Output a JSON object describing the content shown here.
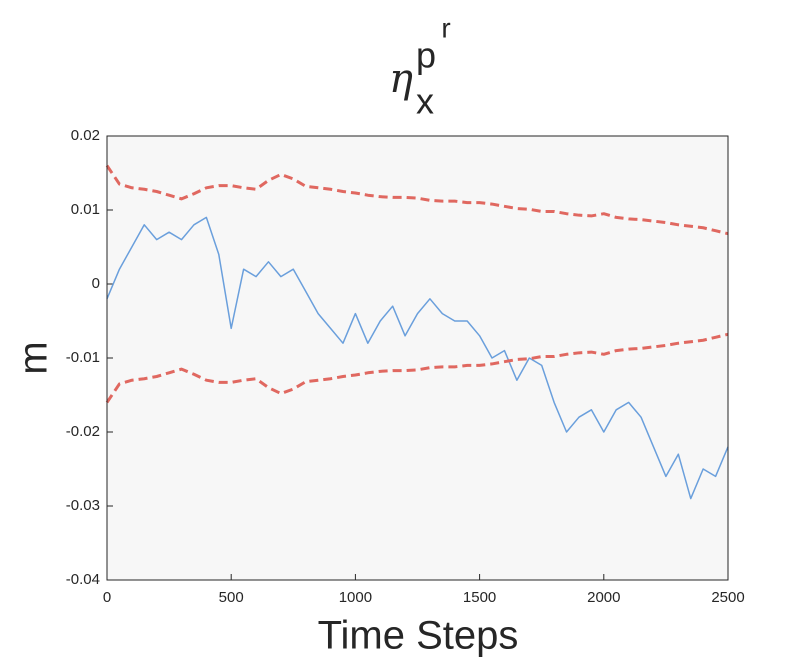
{
  "chart_data": {
    "type": "line",
    "title": {
      "base": "η",
      "subscript": "x",
      "superscript": "p",
      "superscript_superscript": "r"
    },
    "xlabel": "Time Steps",
    "ylabel": "m",
    "x": [
      0,
      50,
      100,
      150,
      200,
      250,
      300,
      350,
      400,
      450,
      500,
      550,
      600,
      650,
      700,
      750,
      800,
      850,
      900,
      950,
      1000,
      1050,
      1100,
      1150,
      1200,
      1250,
      1300,
      1350,
      1400,
      1450,
      1500,
      1550,
      1600,
      1650,
      1700,
      1750,
      1800,
      1850,
      1900,
      1950,
      2000,
      2050,
      2100,
      2150,
      2200,
      2250,
      2300,
      2350,
      2400,
      2450,
      2500
    ],
    "series": [
      {
        "color": "#6a9fdc",
        "dashed": false,
        "values": [
          -0.002,
          0.002,
          0.005,
          0.008,
          0.006,
          0.007,
          0.006,
          0.008,
          0.009,
          0.004,
          -0.006,
          0.002,
          0.001,
          0.003,
          0.001,
          0.002,
          -0.001,
          -0.004,
          -0.006,
          -0.008,
          -0.004,
          -0.008,
          -0.005,
          -0.003,
          -0.007,
          -0.004,
          -0.002,
          -0.004,
          -0.005,
          -0.005,
          -0.007,
          -0.01,
          -0.009,
          -0.013,
          -0.01,
          -0.011,
          -0.016,
          -0.02,
          -0.018,
          -0.017,
          -0.02,
          -0.017,
          -0.016,
          -0.018,
          -0.022,
          -0.026,
          -0.023,
          -0.029,
          -0.025,
          -0.026,
          -0.022
        ]
      },
      {
        "color": "#e06860",
        "dashed": true,
        "values": [
          0.016,
          0.0135,
          0.013,
          0.0128,
          0.0125,
          0.012,
          0.0115,
          0.0122,
          0.013,
          0.0133,
          0.0133,
          0.013,
          0.0128,
          0.014,
          0.0148,
          0.0142,
          0.0132,
          0.013,
          0.0128,
          0.0125,
          0.0123,
          0.012,
          0.0118,
          0.0117,
          0.0117,
          0.0116,
          0.0113,
          0.0112,
          0.0112,
          0.011,
          0.011,
          0.0108,
          0.0105,
          0.0102,
          0.0101,
          0.0098,
          0.0098,
          0.0095,
          0.0093,
          0.0092,
          0.0095,
          0.009,
          0.0088,
          0.0087,
          0.0085,
          0.0083,
          0.008,
          0.0078,
          0.0076,
          0.0072,
          0.0068
        ]
      },
      {
        "color": "#e06860",
        "dashed": true,
        "values": [
          -0.016,
          -0.0135,
          -0.013,
          -0.0128,
          -0.0125,
          -0.012,
          -0.0115,
          -0.0122,
          -0.013,
          -0.0133,
          -0.0133,
          -0.013,
          -0.0128,
          -0.014,
          -0.0148,
          -0.0142,
          -0.0132,
          -0.013,
          -0.0128,
          -0.0125,
          -0.0123,
          -0.012,
          -0.0118,
          -0.0117,
          -0.0117,
          -0.0116,
          -0.0113,
          -0.0112,
          -0.0112,
          -0.011,
          -0.011,
          -0.0108,
          -0.0105,
          -0.0102,
          -0.0101,
          -0.0098,
          -0.0098,
          -0.0095,
          -0.0093,
          -0.0092,
          -0.0095,
          -0.009,
          -0.0088,
          -0.0087,
          -0.0085,
          -0.0083,
          -0.008,
          -0.0078,
          -0.0076,
          -0.0072,
          -0.0068
        ]
      }
    ],
    "xlim": [
      0,
      2500
    ],
    "xticks": [
      0,
      500,
      1000,
      1500,
      2000,
      2500
    ],
    "ylim": [
      -0.04,
      0.02
    ],
    "yticks": [
      -0.04,
      -0.03,
      -0.02,
      -0.01,
      0,
      0.01,
      0.02
    ],
    "grid": false,
    "background": "#f7f7f7"
  }
}
